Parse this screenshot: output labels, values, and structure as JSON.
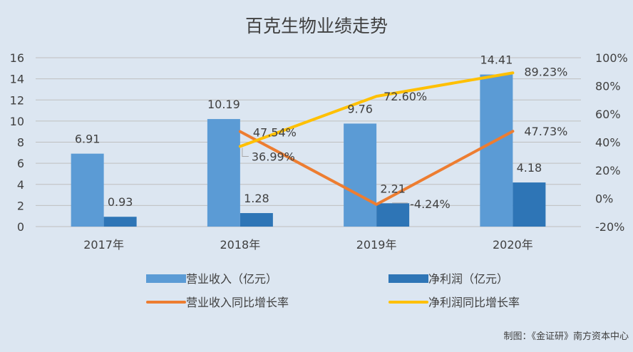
{
  "chart_data": {
    "type": "bar",
    "title": "百克生物业绩走势",
    "categories": [
      "2017年",
      "2018年",
      "2019年",
      "2020年"
    ],
    "series": [
      {
        "name": "营业收入（亿元）",
        "kind": "bar",
        "axis": "left",
        "color": "#5b9bd5",
        "values": [
          6.91,
          10.19,
          9.76,
          14.41
        ],
        "labels": [
          "6.91",
          "10.19",
          "9.76",
          "14.41"
        ]
      },
      {
        "name": "净利润（亿元）",
        "kind": "bar",
        "axis": "left",
        "color": "#2e75b6",
        "values": [
          0.93,
          1.28,
          2.21,
          4.18
        ],
        "labels": [
          "0.93",
          "1.28",
          "2.21",
          "4.18"
        ]
      },
      {
        "name": "营业收入同比增长率",
        "kind": "line",
        "axis": "right",
        "color": "#ed7d31",
        "values": [
          null,
          47.54,
          -4.24,
          47.73
        ],
        "labels": [
          null,
          "47.54%",
          "-4.24%",
          "47.73%"
        ]
      },
      {
        "name": "净利润同比增长率",
        "kind": "line",
        "axis": "right",
        "color": "#ffc000",
        "values": [
          null,
          36.99,
          72.6,
          89.23
        ],
        "labels": [
          null,
          "36.99%",
          "72.60%",
          "89.23%"
        ]
      }
    ],
    "y_left": {
      "min": 0,
      "max": 16,
      "ticks": [
        "0",
        "2",
        "4",
        "6",
        "8",
        "10",
        "12",
        "14",
        "16"
      ]
    },
    "y_right": {
      "min": -20,
      "max": 100,
      "ticks": [
        "-20%",
        "0%",
        "20%",
        "40%",
        "60%",
        "80%",
        "100%"
      ]
    },
    "grid": true,
    "legend_position": "bottom"
  },
  "footer": {
    "source": "制图：《金证研》南方资本中心"
  }
}
